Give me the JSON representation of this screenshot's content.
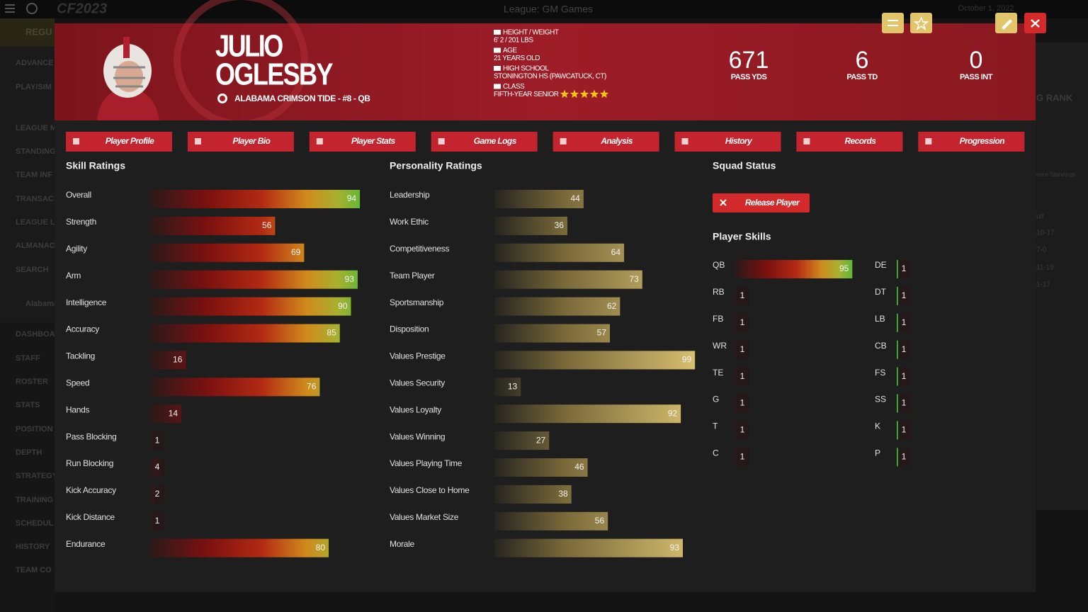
{
  "app": {
    "logo": "CF2023",
    "menu_cut": "REGU",
    "league": "League: GM Games",
    "date": "October 1, 2022",
    "sidebar": [
      "ADVANCE",
      "PLAY/SIM",
      "LEAGUE M",
      "STANDING",
      "TEAM INF",
      "TRANSAC",
      "LEAGUE L",
      "ALMANAC",
      "SEARCH",
      "Alabama",
      "DASHBOA",
      "STAFF",
      "ROSTER",
      "STATS",
      "POSITION",
      "DEPTH",
      "STRATEGY",
      "TRAINING",
      "SCHEDUL",
      "HISTORY",
      "TEAM CO"
    ],
    "right_panel": [
      "G RANK",
      "ence Standings",
      "ult",
      "10-17",
      "7-0",
      "11-19",
      "1-17"
    ]
  },
  "player": {
    "first_name": "JULIO",
    "last_name": "OGLESBY",
    "team_line": "ALABAMA CRIMSON TIDE - #8 - QB",
    "info": [
      {
        "label": "HEIGHT / WEIGHT",
        "value": "6' 2 / 201 LBS"
      },
      {
        "label": "AGE",
        "value": "21 YEARS OLD"
      },
      {
        "label": "HIGH SCHOOL",
        "value": "STONINGTON HS (PAWCATUCK, CT)"
      },
      {
        "label": "CLASS",
        "value": "FIFTH-YEAR SENIOR"
      }
    ],
    "stars": 5,
    "stats": [
      {
        "value": 671,
        "label": "PASS YDS"
      },
      {
        "value": 6,
        "label": "PASS TD"
      },
      {
        "value": 0,
        "label": "PASS INT"
      }
    ]
  },
  "tabs": [
    "Player Profile",
    "Player Bio",
    "Player Stats",
    "Game Logs",
    "Analysis",
    "History",
    "Records",
    "Progression"
  ],
  "skill_ratings": {
    "title": "Skill Ratings",
    "items": [
      {
        "name": "Overall",
        "value": 94
      },
      {
        "name": "Strength",
        "value": 56
      },
      {
        "name": "Agility",
        "value": 69
      },
      {
        "name": "Arm",
        "value": 93
      },
      {
        "name": "Intelligence",
        "value": 90
      },
      {
        "name": "Accuracy",
        "value": 85
      },
      {
        "name": "Tackling",
        "value": 16
      },
      {
        "name": "Speed",
        "value": 76
      },
      {
        "name": "Hands",
        "value": 14
      },
      {
        "name": "Pass Blocking",
        "value": 1
      },
      {
        "name": "Run Blocking",
        "value": 4
      },
      {
        "name": "Kick Accuracy",
        "value": 2
      },
      {
        "name": "Kick Distance",
        "value": 1
      },
      {
        "name": "Endurance",
        "value": 80
      }
    ]
  },
  "personality_ratings": {
    "title": "Personality Ratings",
    "items": [
      {
        "name": "Leadership",
        "value": 44
      },
      {
        "name": "Work Ethic",
        "value": 36
      },
      {
        "name": "Competitiveness",
        "value": 64
      },
      {
        "name": "Team Player",
        "value": 73
      },
      {
        "name": "Sportsmanship",
        "value": 62
      },
      {
        "name": "Disposition",
        "value": 57
      },
      {
        "name": "Values Prestige",
        "value": 99
      },
      {
        "name": "Values Security",
        "value": 13
      },
      {
        "name": "Values Loyalty",
        "value": 92
      },
      {
        "name": "Values Winning",
        "value": 27
      },
      {
        "name": "Values Playing Time",
        "value": 46
      },
      {
        "name": "Values Close to Home",
        "value": 38
      },
      {
        "name": "Values Market Size",
        "value": 56
      },
      {
        "name": "Morale",
        "value": 93
      }
    ]
  },
  "squad_status": {
    "title": "Squad Status",
    "button": "Release Player"
  },
  "player_skills": {
    "title": "Player Skills",
    "items": [
      {
        "position": "QB",
        "value": 95
      },
      {
        "position": "RB",
        "value": 1
      },
      {
        "position": "FB",
        "value": 1
      },
      {
        "position": "WR",
        "value": 1
      },
      {
        "position": "TE",
        "value": 1
      },
      {
        "position": "G",
        "value": 1
      },
      {
        "position": "T",
        "value": 1
      },
      {
        "position": "C",
        "value": 1
      },
      {
        "position": "DE",
        "value": 1
      },
      {
        "position": "DT",
        "value": 1
      },
      {
        "position": "LB",
        "value": 1
      },
      {
        "position": "CB",
        "value": 1
      },
      {
        "position": "FS",
        "value": 1
      },
      {
        "position": "SS",
        "value": 1
      },
      {
        "position": "K",
        "value": 1
      },
      {
        "position": "P",
        "value": 1
      }
    ]
  }
}
